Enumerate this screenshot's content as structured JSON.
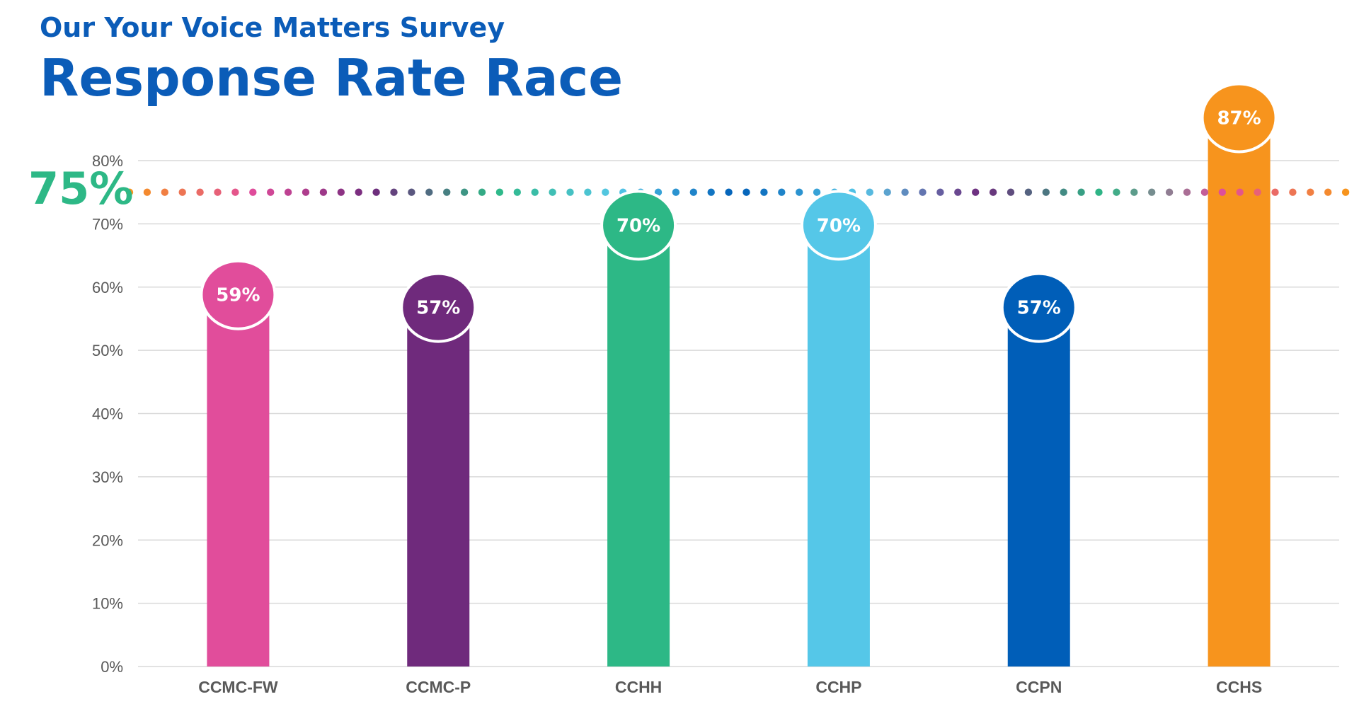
{
  "header": {
    "subtitle": "Our Your Voice Matters Survey",
    "title": "Response Rate Race"
  },
  "colors": {
    "title": "#0B5CB8",
    "target": "#2DB886",
    "grid": "#D9D9D9",
    "axis_text": "#595959",
    "dot_palette": [
      "#F7941D",
      "#E14D9B",
      "#6F2A7C",
      "#2DB886",
      "#55C7E8",
      "#005EB8"
    ]
  },
  "chart_data": {
    "type": "bar",
    "title": "Response Rate Race",
    "subtitle": "Our Your Voice Matters Survey",
    "categories": [
      "CCMC-FW",
      "CCMC-P",
      "CCHH",
      "CCHP",
      "CCPN",
      "CCHS"
    ],
    "values": [
      59,
      57,
      70,
      70,
      57,
      87
    ],
    "value_labels": [
      "59%",
      "57%",
      "70%",
      "70%",
      "57%",
      "87%"
    ],
    "bar_colors": [
      "#E14D9B",
      "#6F2A7C",
      "#2DB886",
      "#55C7E8",
      "#005EB8",
      "#F7941D"
    ],
    "ylim": [
      0,
      80
    ],
    "yticks": [
      0,
      10,
      20,
      30,
      40,
      50,
      60,
      70,
      80
    ],
    "ytick_labels": [
      "0%",
      "10%",
      "20%",
      "30%",
      "40%",
      "50%",
      "60%",
      "70%",
      "80%"
    ],
    "target": 75,
    "target_label": "75%",
    "grid": true,
    "legend": "none",
    "xlabel": "",
    "ylabel": ""
  }
}
